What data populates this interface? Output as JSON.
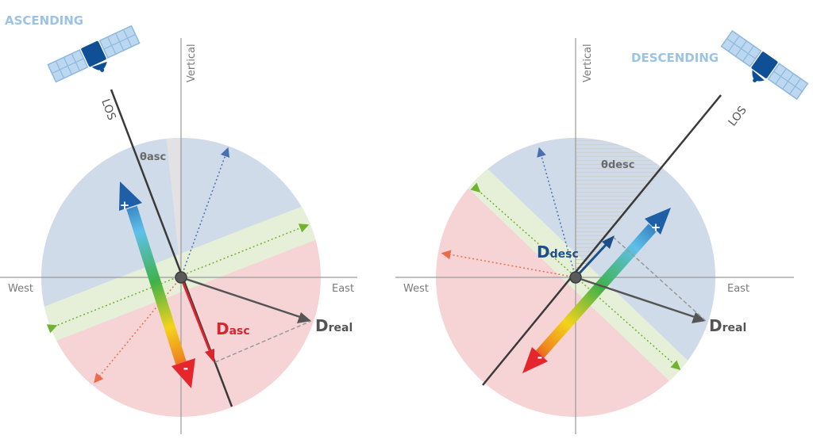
{
  "left": {
    "mode_label": "ASCENDING",
    "vertical_label": "Vertical",
    "west_label": "West",
    "east_label": "East",
    "los_label": "LOS",
    "theta_symbol": "θ",
    "theta_sub": "asc",
    "d_symbol": "D",
    "d_sub": "asc",
    "dreal_symbol": "D",
    "dreal_sub": "real",
    "plus": "+",
    "minus": "-"
  },
  "right": {
    "mode_label": "DESCENDING",
    "vertical_label": "Vertical",
    "west_label": "West",
    "east_label": "East",
    "los_label": "LOS",
    "theta_symbol": "θ",
    "theta_sub": "desc",
    "d_symbol": "D",
    "d_sub": "desc",
    "dreal_symbol": "D",
    "dreal_sub": "real",
    "plus": "+",
    "minus": "-"
  },
  "colors": {
    "toward_sector": "#cfdbe9",
    "away_sector": "#f6d4d6",
    "insensitive_band": "#e6f0d8",
    "axis": "#9a9a9a",
    "los_line": "#3a3a3a",
    "d_asc": "#d9262e",
    "d_desc": "#1d4f8a",
    "d_real": "#555555",
    "satellite": "#0e4f96",
    "panel": "#a9cbe8"
  }
}
